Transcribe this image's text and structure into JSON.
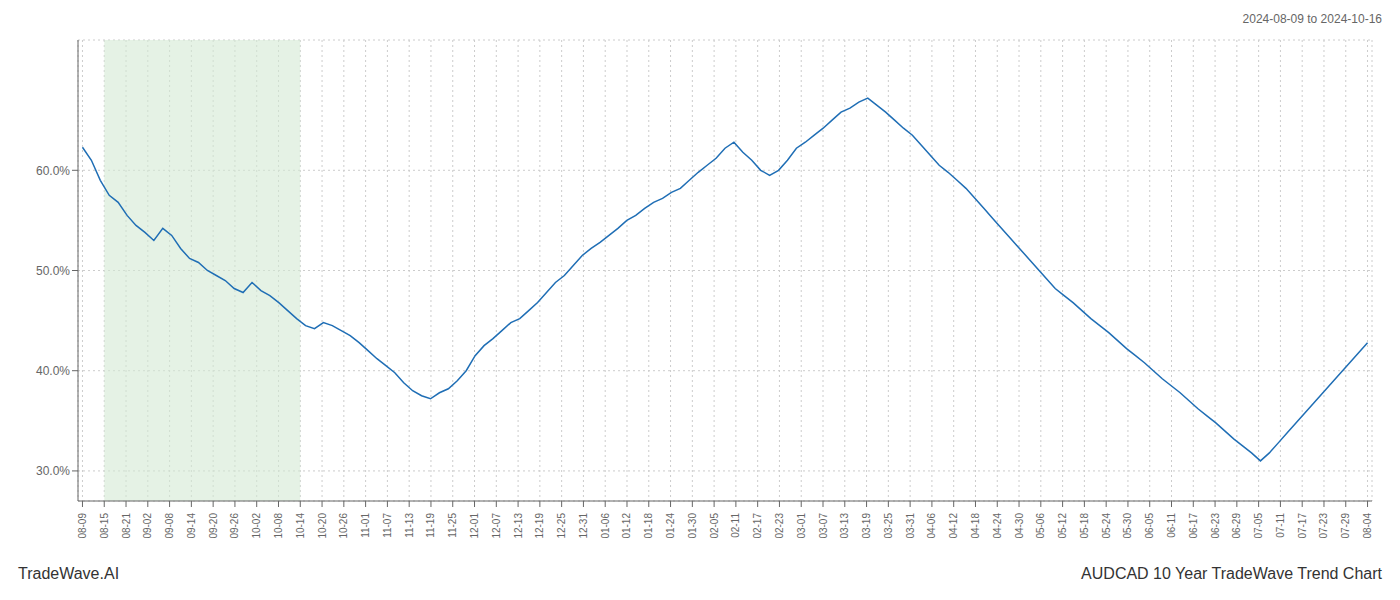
{
  "chart_data": {
    "type": "line",
    "title": "AUDCAD 10 Year TradeWave Trend Chart",
    "subtitle": "2024-08-09 to 2024-10-16",
    "annotations": [
      "TradeWave.AI"
    ],
    "color": "#1f6eb5",
    "grid": true,
    "xlim": [
      -0.5,
      144.5
    ],
    "xticks": [
      {
        "value": 0,
        "label": "08-09"
      },
      {
        "value": 2.4406779661,
        "label": "08-15"
      },
      {
        "value": 4.8813559322,
        "label": "08-21"
      },
      {
        "value": 7.3220338983,
        "label": "09-02"
      },
      {
        "value": 9.7627118644,
        "label": "09-08"
      },
      {
        "value": 12.2033898305,
        "label": "09-14"
      },
      {
        "value": 14.6440677966,
        "label": "09-20"
      },
      {
        "value": 17.0847457627,
        "label": "09-26"
      },
      {
        "value": 19.5254237288,
        "label": "10-02"
      },
      {
        "value": 21.9661016949,
        "label": "10-08"
      },
      {
        "value": 24.406779661,
        "label": "10-14"
      },
      {
        "value": 26.8474576271,
        "label": "10-20"
      },
      {
        "value": 29.2881355932,
        "label": "10-26"
      },
      {
        "value": 31.7288135593,
        "label": "11-01"
      },
      {
        "value": 34.1694915254,
        "label": "11-07"
      },
      {
        "value": 36.6101694915,
        "label": "11-13"
      },
      {
        "value": 39.0508474576,
        "label": "11-19"
      },
      {
        "value": 41.4915254237,
        "label": "11-25"
      },
      {
        "value": 43.9322033898,
        "label": "12-01"
      },
      {
        "value": 46.3728813559,
        "label": "12-07"
      },
      {
        "value": 48.813559322,
        "label": "12-13"
      },
      {
        "value": 51.2542372881,
        "label": "12-19"
      },
      {
        "value": 53.6949152542,
        "label": "12-25"
      },
      {
        "value": 56.1355932203,
        "label": "12-31"
      },
      {
        "value": 58.5762711864,
        "label": "01-06"
      },
      {
        "value": 61.0169491525,
        "label": "01-12"
      },
      {
        "value": 63.4576271186,
        "label": "01-18"
      },
      {
        "value": 65.8983050847,
        "label": "01-24"
      },
      {
        "value": 68.3389830508,
        "label": "01-30"
      },
      {
        "value": 70.7796610169,
        "label": "02-05"
      },
      {
        "value": 73.2203389831,
        "label": "02-11"
      },
      {
        "value": 75.6610169492,
        "label": "02-17"
      },
      {
        "value": 78.1016949153,
        "label": "02-23"
      },
      {
        "value": 80.5423728814,
        "label": "03-01"
      },
      {
        "value": 82.9830508475,
        "label": "03-07"
      },
      {
        "value": 85.4237288136,
        "label": "03-13"
      },
      {
        "value": 87.8644067797,
        "label": "03-19"
      },
      {
        "value": 90.3050847458,
        "label": "03-25"
      },
      {
        "value": 92.7457627119,
        "label": "03-31"
      },
      {
        "value": 95.186440678,
        "label": "04-06"
      },
      {
        "value": 97.6271186441,
        "label": "04-12"
      },
      {
        "value": 100.0677966102,
        "label": "04-18"
      },
      {
        "value": 102.5084745763,
        "label": "04-24"
      },
      {
        "value": 104.9491525424,
        "label": "04-30"
      },
      {
        "value": 107.3898305085,
        "label": "05-06"
      },
      {
        "value": 109.8305084746,
        "label": "05-12"
      },
      {
        "value": 112.2711864407,
        "label": "05-18"
      },
      {
        "value": 114.7118644068,
        "label": "05-24"
      },
      {
        "value": 117.1525423729,
        "label": "05-30"
      },
      {
        "value": 119.593220339,
        "label": "06-05"
      },
      {
        "value": 122.0338983051,
        "label": "06-11"
      },
      {
        "value": 124.4745762712,
        "label": "06-17"
      },
      {
        "value": 126.9152542373,
        "label": "06-23"
      },
      {
        "value": 129.3559322034,
        "label": "06-29"
      },
      {
        "value": 131.7966101695,
        "label": "07-05"
      },
      {
        "value": 134.2372881356,
        "label": "07-11"
      },
      {
        "value": 136.6779661017,
        "label": "07-17"
      },
      {
        "value": 139.1186440678,
        "label": "07-23"
      },
      {
        "value": 141.5593220339,
        "label": "07-29"
      },
      {
        "value": 144,
        "label": "08-04"
      }
    ],
    "ylim": [
      0.27,
      0.73
    ],
    "yticks": [
      {
        "value": 0.3,
        "label": "30.0%"
      },
      {
        "value": 0.4,
        "label": "40.0%"
      },
      {
        "value": 0.5,
        "label": "50.0%"
      },
      {
        "value": 0.6,
        "label": "60.0%"
      }
    ],
    "shaded_range": {
      "from": "08-15",
      "to": "10-14",
      "color": "#d4e9d4"
    },
    "x": [
      0,
      1,
      2,
      3,
      4,
      5,
      6,
      7,
      8,
      9,
      10,
      11,
      12,
      13,
      14,
      15,
      16,
      17,
      18,
      19,
      20,
      21,
      22,
      23,
      24,
      25,
      26,
      27,
      28,
      29,
      30,
      31,
      32,
      33,
      34,
      35,
      36,
      37,
      38,
      39,
      40,
      41,
      42,
      43,
      44,
      45,
      46,
      47,
      48,
      49,
      50,
      51,
      52,
      53,
      54,
      55,
      56,
      57,
      58,
      59,
      60,
      61,
      62,
      63,
      64,
      65,
      66,
      67,
      68,
      69,
      70,
      71,
      72,
      73,
      74,
      75,
      76,
      77,
      78,
      79,
      80,
      81,
      82,
      83,
      84,
      85,
      86,
      87,
      88,
      89,
      90,
      91,
      92,
      93,
      94,
      95,
      96,
      97,
      98,
      99,
      100,
      101,
      102,
      103,
      104,
      105,
      106,
      107,
      108,
      109,
      110,
      111,
      112,
      113,
      114,
      115,
      116,
      117,
      118,
      119,
      120,
      121,
      122,
      123,
      124,
      125,
      126,
      127,
      128,
      129,
      130,
      131,
      132,
      133,
      134,
      135,
      136,
      137,
      138,
      139,
      140,
      141,
      142,
      143,
      144
    ],
    "values": [
      0.623,
      0.61,
      0.59,
      0.575,
      0.568,
      0.555,
      0.545,
      0.538,
      0.53,
      0.542,
      0.535,
      0.522,
      0.512,
      0.508,
      0.5,
      0.495,
      0.49,
      0.482,
      0.478,
      0.488,
      0.48,
      0.475,
      0.468,
      0.46,
      0.452,
      0.445,
      0.442,
      0.448,
      0.445,
      0.44,
      0.435,
      0.428,
      0.42,
      0.412,
      0.405,
      0.398,
      0.388,
      0.38,
      0.375,
      0.372,
      0.378,
      0.382,
      0.39,
      0.4,
      0.415,
      0.425,
      0.432,
      0.44,
      0.448,
      0.452,
      0.46,
      0.468,
      0.478,
      0.488,
      0.495,
      0.505,
      0.515,
      0.522,
      0.528,
      0.535,
      0.542,
      0.55,
      0.555,
      0.562,
      0.568,
      0.572,
      0.578,
      0.582,
      0.59,
      0.598,
      0.605,
      0.612,
      0.622,
      0.628,
      0.618,
      0.61,
      0.6,
      0.595,
      0.6,
      0.61,
      0.622,
      0.628,
      0.635,
      0.642,
      0.65,
      0.658,
      0.662,
      0.668,
      0.672,
      0.665,
      0.658,
      0.65,
      0.642,
      0.635,
      0.625,
      0.615,
      0.605,
      0.598,
      0.59,
      0.582,
      0.572,
      0.562,
      0.552,
      0.542,
      0.532,
      0.522,
      0.512,
      0.502,
      0.492,
      0.482,
      0.475,
      0.468,
      0.46,
      0.452,
      0.445,
      0.438,
      0.43,
      0.422,
      0.415,
      0.408,
      0.4,
      0.392,
      0.385,
      0.378,
      0.37,
      0.362,
      0.355,
      0.348,
      0.34,
      0.332,
      0.325,
      0.318,
      0.31,
      0.318,
      0.328,
      0.338,
      0.348,
      0.358,
      0.368,
      0.378,
      0.388,
      0.398,
      0.408,
      0.418,
      0.428
    ]
  }
}
